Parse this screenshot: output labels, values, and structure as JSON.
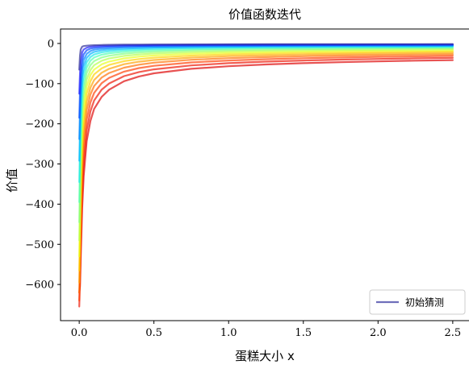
{
  "chart_data": {
    "type": "line",
    "title": "价值函数迭代",
    "xlabel": "蛋糕大小 x",
    "ylabel": "价值",
    "xlim": [
      -0.125,
      2.625
    ],
    "ylim": [
      -690,
      36
    ],
    "x_ticks": [
      {
        "value": 0.0,
        "label": "0.0"
      },
      {
        "value": 0.5,
        "label": "0.5"
      },
      {
        "value": 1.0,
        "label": "1.0"
      },
      {
        "value": 1.5,
        "label": "1.5"
      },
      {
        "value": 2.0,
        "label": "2.0"
      },
      {
        "value": 2.5,
        "label": "2.5"
      }
    ],
    "y_ticks": [
      {
        "value": 0,
        "label": "0"
      },
      {
        "value": -100,
        "label": "−100"
      },
      {
        "value": -200,
        "label": "−200"
      },
      {
        "value": -300,
        "label": "−300"
      },
      {
        "value": -400,
        "label": "−400"
      },
      {
        "value": -500,
        "label": "−500"
      },
      {
        "value": -600,
        "label": "−600"
      }
    ],
    "grid": false,
    "legend": {
      "placement": "lower-right",
      "entries": [
        {
          "label": "初始猜测",
          "color": "#2b2b9a"
        }
      ]
    },
    "colormap": "jet",
    "x_points": [
      0.0001,
      0.005,
      0.01,
      0.02,
      0.03,
      0.05,
      0.075,
      0.1,
      0.15,
      0.2,
      0.3,
      0.4,
      0.5,
      0.75,
      1.0,
      1.25,
      1.5,
      1.75,
      2.0,
      2.25,
      2.5
    ],
    "series": [
      {
        "values": [
          -65,
          -30,
          -15,
          -8,
          -6.5,
          -5.5,
          -4.8,
          -4.3,
          -3.8,
          -3.4,
          -3.0,
          -2.8,
          -2.6,
          -2.3,
          -2.1,
          -2.0,
          -1.9,
          -1.8,
          -1.7,
          -1.65,
          -1.6
        ],
        "color": "#2b2b9a",
        "legend": true
      },
      {
        "values": [
          -125,
          -75,
          -45,
          -22,
          -15,
          -10.5,
          -8.3,
          -7.2,
          -6.2,
          -5.5,
          -4.8,
          -4.3,
          -4.0,
          -3.5,
          -3.2,
          -3.0,
          -2.8,
          -2.7,
          -2.6,
          -2.5,
          -2.45
        ],
        "color": "#1a1aff"
      },
      {
        "values": [
          -185,
          -120,
          -80,
          -42,
          -27,
          -17,
          -13,
          -11,
          -9.2,
          -8.2,
          -7.0,
          -6.3,
          -5.8,
          -5.0,
          -4.6,
          -4.3,
          -4.0,
          -3.9,
          -3.7,
          -3.6,
          -3.5
        ],
        "color": "#0047ff"
      },
      {
        "values": [
          -238,
          -165,
          -115,
          -62,
          -41,
          -26,
          -19,
          -15.5,
          -12.8,
          -11.3,
          -9.6,
          -8.6,
          -7.9,
          -6.9,
          -6.2,
          -5.8,
          -5.5,
          -5.2,
          -5.0,
          -4.85,
          -4.7
        ],
        "color": "#0080ff"
      },
      {
        "values": [
          -292,
          -210,
          -150,
          -85,
          -57,
          -36,
          -26,
          -21,
          -17,
          -15,
          -12.7,
          -11.3,
          -10.4,
          -9.0,
          -8.1,
          -7.6,
          -7.1,
          -6.8,
          -6.5,
          -6.3,
          -6.1
        ],
        "color": "#00b4ff"
      },
      {
        "values": [
          -345,
          -255,
          -185,
          -108,
          -74,
          -47,
          -34,
          -27.5,
          -22,
          -19.3,
          -16.2,
          -14.4,
          -13.2,
          -11.4,
          -10.3,
          -9.6,
          -9.0,
          -8.6,
          -8.2,
          -7.9,
          -7.7
        ],
        "color": "#1ae8e8"
      },
      {
        "values": [
          -395,
          -300,
          -222,
          -135,
          -94,
          -60,
          -43,
          -35,
          -28,
          -24.5,
          -20.5,
          -18.2,
          -16.7,
          -14.3,
          -12.9,
          -12.0,
          -11.3,
          -10.7,
          -10.3,
          -9.9,
          -9.6
        ],
        "color": "#4dffb3"
      },
      {
        "values": [
          -445,
          -345,
          -260,
          -162,
          -115,
          -74,
          -54,
          -44,
          -35,
          -30.5,
          -25.4,
          -22.5,
          -20.6,
          -17.6,
          -15.9,
          -14.8,
          -13.9,
          -13.2,
          -12.6,
          -12.2,
          -11.8
        ],
        "color": "#80ff80"
      },
      {
        "values": [
          -490,
          -390,
          -298,
          -190,
          -137,
          -90,
          -66,
          -54,
          -43,
          -37.5,
          -31,
          -27.4,
          -25,
          -21.4,
          -19.3,
          -17.9,
          -16.8,
          -16.0,
          -15.3,
          -14.7,
          -14.2
        ],
        "color": "#b3ff4d"
      },
      {
        "values": [
          -530,
          -430,
          -335,
          -218,
          -160,
          -107,
          -79,
          -65,
          -52,
          -45,
          -37.2,
          -32.8,
          -29.9,
          -25.5,
          -23,
          -21.3,
          -20,
          -19.0,
          -18.2,
          -17.5,
          -16.9
        ],
        "color": "#e8ff1a"
      },
      {
        "values": [
          -565,
          -470,
          -372,
          -248,
          -185,
          -125,
          -94,
          -77,
          -62,
          -53.5,
          -44,
          -38.8,
          -35.3,
          -30.1,
          -27.1,
          -25.1,
          -23.6,
          -22.4,
          -21.4,
          -20.6,
          -19.9
        ],
        "color": "#ffd200"
      },
      {
        "values": [
          -595,
          -505,
          -408,
          -278,
          -210,
          -145,
          -110,
          -91,
          -73,
          -63,
          -51.7,
          -45.4,
          -41.3,
          -35.1,
          -31.6,
          -29.3,
          -27.5,
          -26.1,
          -25,
          -24,
          -23.2
        ],
        "color": "#ffa000"
      },
      {
        "values": [
          -620,
          -537,
          -443,
          -310,
          -238,
          -166,
          -127,
          -106,
          -85,
          -73.5,
          -60.2,
          -52.8,
          -47.9,
          -40.7,
          -36.6,
          -33.9,
          -31.8,
          -30.2,
          -28.9,
          -27.8,
          -26.9
        ],
        "color": "#ff6e00"
      },
      {
        "values": [
          -640,
          -565,
          -477,
          -342,
          -267,
          -190,
          -147,
          -123,
          -99,
          -85.5,
          -70,
          -61.3,
          -55.6,
          -47.2,
          -42.4,
          -39.2,
          -36.8,
          -34.9,
          -33.4,
          -32.1,
          -31.0
        ],
        "color": "#ff3c00"
      },
      {
        "values": [
          -655,
          -590,
          -508,
          -375,
          -298,
          -216,
          -169,
          -142,
          -115,
          -99.5,
          -81.3,
          -71.1,
          -64.4,
          -54.6,
          -49,
          -45.3,
          -42.5,
          -40.3,
          -38.6,
          -37.1,
          -35.8
        ],
        "color": "#ee1100"
      },
      {
        "values": [
          -620,
          -605,
          -535,
          -410,
          -330,
          -243,
          -193,
          -163,
          -133,
          -115,
          -94,
          -82.2,
          -74.4,
          -63.1,
          -56.6,
          -52.3,
          -49.1,
          -46.6,
          -44.6,
          -42.9,
          -41.4
        ],
        "color": "#dd0000"
      }
    ]
  }
}
